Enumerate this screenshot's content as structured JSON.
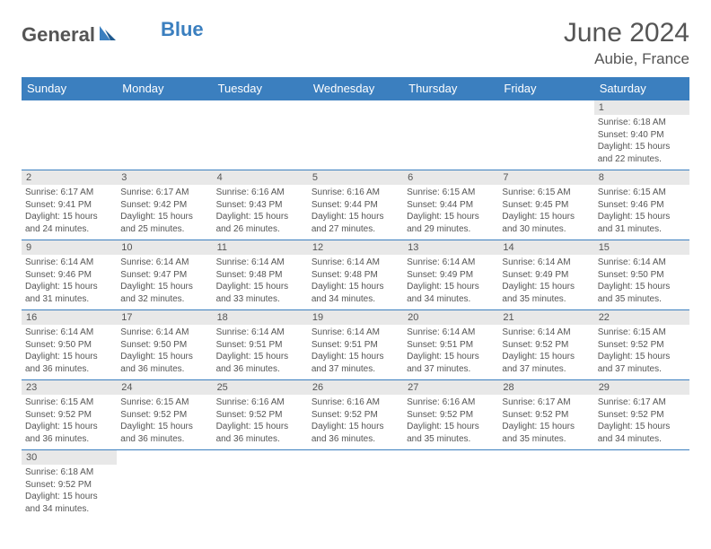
{
  "logo": {
    "part1": "General",
    "part2": "Blue"
  },
  "title": "June 2024",
  "location": "Aubie, France",
  "colors": {
    "header_bg": "#3b7fbf",
    "header_text": "#ffffff",
    "daynum_bg": "#e8e8e8",
    "cell_border": "#3b7fbf",
    "text": "#555555",
    "logo_gray": "#555555",
    "logo_blue": "#3b7fbf"
  },
  "weekdays": [
    "Sunday",
    "Monday",
    "Tuesday",
    "Wednesday",
    "Thursday",
    "Friday",
    "Saturday"
  ],
  "first_day_index": 6,
  "days_in_month": 30,
  "days": {
    "1": {
      "sunrise": "6:18 AM",
      "sunset": "9:40 PM",
      "daylight": "15 hours and 22 minutes."
    },
    "2": {
      "sunrise": "6:17 AM",
      "sunset": "9:41 PM",
      "daylight": "15 hours and 24 minutes."
    },
    "3": {
      "sunrise": "6:17 AM",
      "sunset": "9:42 PM",
      "daylight": "15 hours and 25 minutes."
    },
    "4": {
      "sunrise": "6:16 AM",
      "sunset": "9:43 PM",
      "daylight": "15 hours and 26 minutes."
    },
    "5": {
      "sunrise": "6:16 AM",
      "sunset": "9:44 PM",
      "daylight": "15 hours and 27 minutes."
    },
    "6": {
      "sunrise": "6:15 AM",
      "sunset": "9:44 PM",
      "daylight": "15 hours and 29 minutes."
    },
    "7": {
      "sunrise": "6:15 AM",
      "sunset": "9:45 PM",
      "daylight": "15 hours and 30 minutes."
    },
    "8": {
      "sunrise": "6:15 AM",
      "sunset": "9:46 PM",
      "daylight": "15 hours and 31 minutes."
    },
    "9": {
      "sunrise": "6:14 AM",
      "sunset": "9:46 PM",
      "daylight": "15 hours and 31 minutes."
    },
    "10": {
      "sunrise": "6:14 AM",
      "sunset": "9:47 PM",
      "daylight": "15 hours and 32 minutes."
    },
    "11": {
      "sunrise": "6:14 AM",
      "sunset": "9:48 PM",
      "daylight": "15 hours and 33 minutes."
    },
    "12": {
      "sunrise": "6:14 AM",
      "sunset": "9:48 PM",
      "daylight": "15 hours and 34 minutes."
    },
    "13": {
      "sunrise": "6:14 AM",
      "sunset": "9:49 PM",
      "daylight": "15 hours and 34 minutes."
    },
    "14": {
      "sunrise": "6:14 AM",
      "sunset": "9:49 PM",
      "daylight": "15 hours and 35 minutes."
    },
    "15": {
      "sunrise": "6:14 AM",
      "sunset": "9:50 PM",
      "daylight": "15 hours and 35 minutes."
    },
    "16": {
      "sunrise": "6:14 AM",
      "sunset": "9:50 PM",
      "daylight": "15 hours and 36 minutes."
    },
    "17": {
      "sunrise": "6:14 AM",
      "sunset": "9:50 PM",
      "daylight": "15 hours and 36 minutes."
    },
    "18": {
      "sunrise": "6:14 AM",
      "sunset": "9:51 PM",
      "daylight": "15 hours and 36 minutes."
    },
    "19": {
      "sunrise": "6:14 AM",
      "sunset": "9:51 PM",
      "daylight": "15 hours and 37 minutes."
    },
    "20": {
      "sunrise": "6:14 AM",
      "sunset": "9:51 PM",
      "daylight": "15 hours and 37 minutes."
    },
    "21": {
      "sunrise": "6:14 AM",
      "sunset": "9:52 PM",
      "daylight": "15 hours and 37 minutes."
    },
    "22": {
      "sunrise": "6:15 AM",
      "sunset": "9:52 PM",
      "daylight": "15 hours and 37 minutes."
    },
    "23": {
      "sunrise": "6:15 AM",
      "sunset": "9:52 PM",
      "daylight": "15 hours and 36 minutes."
    },
    "24": {
      "sunrise": "6:15 AM",
      "sunset": "9:52 PM",
      "daylight": "15 hours and 36 minutes."
    },
    "25": {
      "sunrise": "6:16 AM",
      "sunset": "9:52 PM",
      "daylight": "15 hours and 36 minutes."
    },
    "26": {
      "sunrise": "6:16 AM",
      "sunset": "9:52 PM",
      "daylight": "15 hours and 36 minutes."
    },
    "27": {
      "sunrise": "6:16 AM",
      "sunset": "9:52 PM",
      "daylight": "15 hours and 35 minutes."
    },
    "28": {
      "sunrise": "6:17 AM",
      "sunset": "9:52 PM",
      "daylight": "15 hours and 35 minutes."
    },
    "29": {
      "sunrise": "6:17 AM",
      "sunset": "9:52 PM",
      "daylight": "15 hours and 34 minutes."
    },
    "30": {
      "sunrise": "6:18 AM",
      "sunset": "9:52 PM",
      "daylight": "15 hours and 34 minutes."
    }
  },
  "labels": {
    "sunrise": "Sunrise:",
    "sunset": "Sunset:",
    "daylight": "Daylight:"
  }
}
